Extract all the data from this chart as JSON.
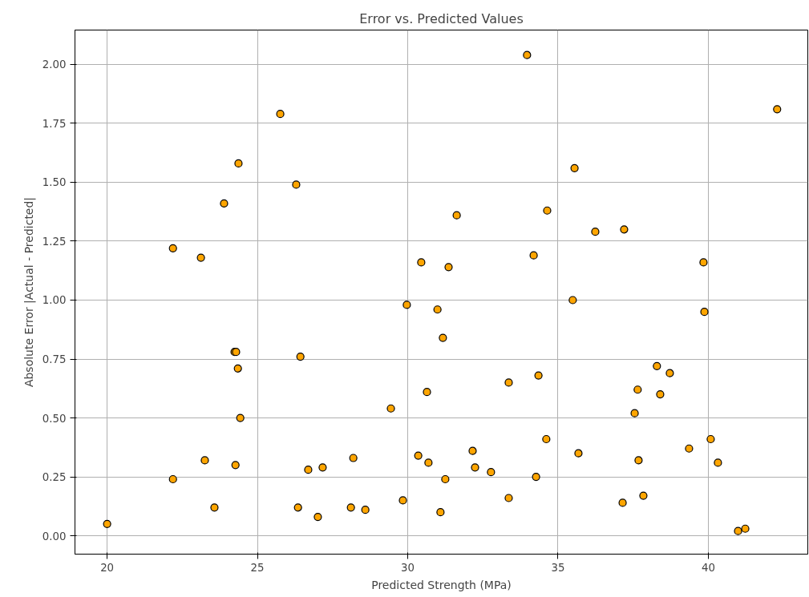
{
  "chart_data": {
    "type": "scatter",
    "title": "Error vs. Predicted Values",
    "xlabel": "Predicted Strength (MPa)",
    "ylabel": "Absolute Error |Actual - Predicted|",
    "x": [
      20.0,
      22.19,
      22.19,
      23.12,
      23.25,
      23.57,
      23.89,
      24.24,
      24.29,
      24.35,
      24.27,
      24.37,
      24.43,
      25.76,
      26.29,
      26.43,
      26.35,
      26.69,
      27.01,
      27.17,
      28.19,
      28.11,
      28.59,
      29.44,
      29.84,
      29.97,
      30.35,
      30.45,
      30.64,
      30.69,
      30.99,
      31.17,
      31.09,
      31.25,
      31.36,
      31.63,
      32.16,
      32.24,
      32.77,
      33.36,
      33.36,
      33.97,
      34.19,
      34.27,
      34.35,
      34.61,
      34.64,
      35.49,
      35.55,
      35.68,
      36.24,
      37.2,
      37.15,
      37.55,
      37.65,
      37.68,
      37.84,
      38.29,
      38.4,
      38.72,
      39.36,
      39.84,
      39.87,
      40.08,
      40.32,
      40.99,
      41.23,
      42.29
    ],
    "series": [
      {
        "color": "#ffa500",
        "values": [
          0.05,
          1.22,
          0.24,
          1.18,
          0.32,
          0.12,
          1.41,
          0.78,
          0.78,
          0.71,
          0.3,
          1.58,
          0.5,
          1.79,
          1.49,
          0.76,
          0.12,
          0.28,
          0.08,
          0.29,
          0.33,
          0.12,
          0.11,
          0.54,
          0.15,
          0.98,
          0.34,
          1.16,
          0.61,
          0.31,
          0.96,
          0.84,
          0.1,
          0.24,
          1.14,
          1.36,
          0.36,
          0.29,
          0.27,
          0.65,
          0.16,
          2.04,
          1.19,
          0.25,
          0.68,
          0.41,
          1.38,
          1.0,
          1.56,
          0.35,
          1.29,
          1.3,
          0.14,
          0.52,
          0.62,
          0.32,
          0.17,
          0.72,
          0.6,
          0.69,
          0.37,
          1.16,
          0.95,
          0.41,
          0.31,
          0.02,
          0.03,
          1.81
        ]
      }
    ],
    "xlim": [
      18.93,
      43.31
    ],
    "ylim": [
      -0.078,
      2.146
    ],
    "xticks": [
      20,
      25,
      30,
      35,
      40
    ],
    "yticks": [
      {
        "value": 0,
        "label": "0.00"
      },
      {
        "value": 0.25,
        "label": "0.25"
      },
      {
        "value": 0.5,
        "label": "0.50"
      },
      {
        "value": 0.75,
        "label": "0.75"
      },
      {
        "value": 1,
        "label": "1.00"
      },
      {
        "value": 1.25,
        "label": "1.25"
      },
      {
        "value": 1.5,
        "label": "1.50"
      },
      {
        "value": 1.75,
        "label": "1.75"
      },
      {
        "value": 2,
        "label": "2.00"
      }
    ],
    "grid": true,
    "marker": "circle"
  }
}
